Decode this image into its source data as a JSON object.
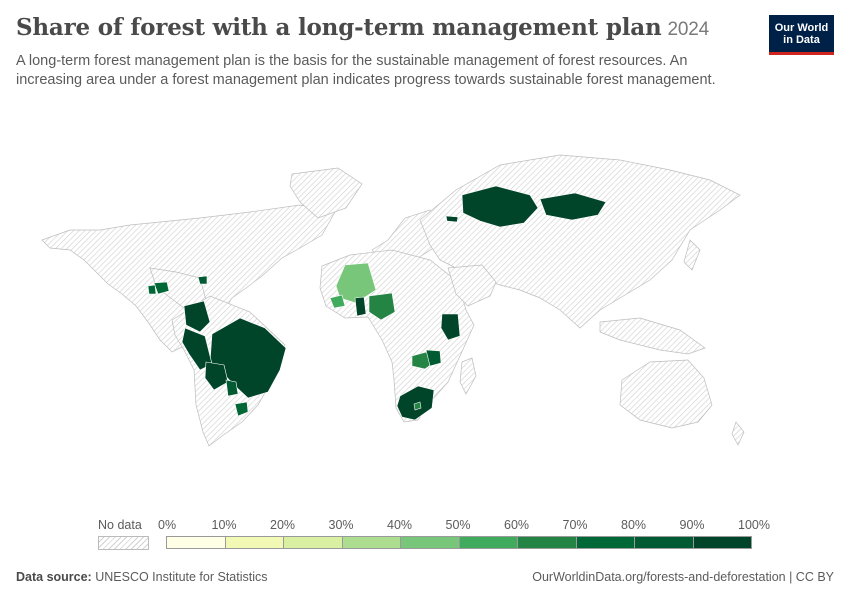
{
  "header": {
    "title": "Share of forest with a long-term management plan",
    "year": "2024",
    "subtitle": "A long-term forest management plan is the basis for the sustainable management of forest resources. An increasing area under a forest management plan indicates progress towards sustainable forest management.",
    "logo_line1": "Our World",
    "logo_line2": "in Data"
  },
  "legend": {
    "no_data_label": "No data",
    "ticks": [
      "0%",
      "10%",
      "20%",
      "30%",
      "40%",
      "50%",
      "60%",
      "70%",
      "80%",
      "90%",
      "100%"
    ],
    "colors": [
      "#ffffe5",
      "#f1f9b5",
      "#d9f0a3",
      "#addd8e",
      "#78c679",
      "#41ab5d",
      "#238443",
      "#006837",
      "#005a32",
      "#004529"
    ],
    "no_data_color": "#d2d2d2"
  },
  "footer": {
    "source_label": "Data source:",
    "source_value": "UNESCO Institute for Statistics",
    "url": "OurWorldinData.org/forests-and-deforestation | CC BY"
  },
  "chart_data": {
    "type": "choropleth",
    "year": "2024",
    "unit": "%",
    "scale_min": 0,
    "scale_max": 100,
    "bin_step": 10,
    "countries": [
      {
        "name": "Mali",
        "value": 45
      },
      {
        "name": "Guinea",
        "value": 55
      },
      {
        "name": "Ghana",
        "value": 95
      },
      {
        "name": "Nigeria",
        "value": 60
      },
      {
        "name": "Kenya",
        "value": 95
      },
      {
        "name": "Zambia",
        "value": 60
      },
      {
        "name": "Zimbabwe",
        "value": 85
      },
      {
        "name": "South Africa",
        "value": 95
      },
      {
        "name": "Lesotho",
        "value": 65
      },
      {
        "name": "Brazil",
        "value": 95
      },
      {
        "name": "Peru",
        "value": 95
      },
      {
        "name": "Colombia",
        "value": 95
      },
      {
        "name": "Bolivia",
        "value": 95
      },
      {
        "name": "Paraguay",
        "value": 85
      },
      {
        "name": "Uruguay",
        "value": 75
      },
      {
        "name": "Honduras",
        "value": 75
      },
      {
        "name": "Guatemala",
        "value": 75
      },
      {
        "name": "Dominican Republic",
        "value": 85
      },
      {
        "name": "Kazakhstan",
        "value": 95
      },
      {
        "name": "Mongolia",
        "value": 95
      },
      {
        "name": "Georgia",
        "value": 95
      }
    ]
  }
}
